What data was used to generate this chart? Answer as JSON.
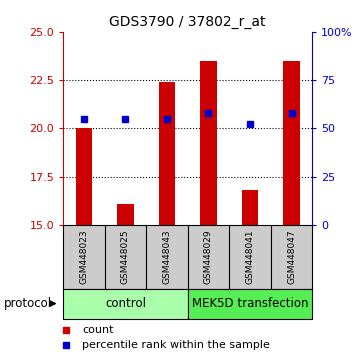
{
  "title": "GDS3790 / 37802_r_at",
  "samples": [
    "GSM448023",
    "GSM448025",
    "GSM448043",
    "GSM448029",
    "GSM448041",
    "GSM448047"
  ],
  "red_values": [
    20.0,
    16.1,
    22.4,
    23.5,
    16.8,
    23.5
  ],
  "blue_values": [
    55.0,
    55.0,
    55.0,
    58.0,
    52.0,
    58.0
  ],
  "bar_baseline": 15.0,
  "ylim_left": [
    15,
    25
  ],
  "ylim_right": [
    0,
    100
  ],
  "yticks_left": [
    15,
    17.5,
    20,
    22.5,
    25
  ],
  "yticks_right": [
    0,
    25,
    50,
    75,
    100
  ],
  "ytick_labels_right": [
    "0",
    "25",
    "50",
    "75",
    "100%"
  ],
  "bar_color": "#cc0000",
  "dot_color": "#0000cc",
  "bg_color": "#ffffff",
  "control_label": "control",
  "mek5d_label": "MEK5D transfection",
  "protocol_label": "protocol",
  "legend_count": "count",
  "legend_percentile": "percentile rank within the sample",
  "control_color": "#aaffaa",
  "mek5d_color": "#55ee55",
  "label_bg_color": "#cccccc",
  "grid_yticks": [
    17.5,
    20,
    22.5
  ]
}
